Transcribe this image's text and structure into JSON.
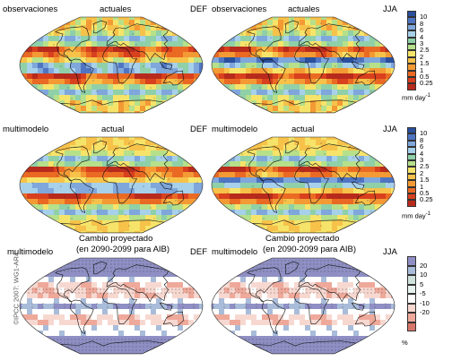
{
  "credit": "©IPCC 2007: WG1-AR4",
  "rows": [
    {
      "left_title": "observaciones",
      "mid_title": "actuales",
      "left_season": "DEF",
      "right_title": "observaciones",
      "right_mid_title": "actuales",
      "right_season": "JJA"
    },
    {
      "left_title": "multimodelo",
      "mid_title": "actual",
      "left_season": "DEF",
      "right_title": "multimodelo",
      "right_mid_title": "actual",
      "right_season": "JJA"
    },
    {
      "left_title": "multimodelo",
      "mid_title": "Cambio proyectado",
      "mid_title2": "(en 2090-2099 para AIB)",
      "left_season": "DEF",
      "right_title": "multimodelo",
      "right_mid_title": "Cambio proyectado",
      "right_mid_title2": "(en 2090-2099 para AIB)",
      "right_season": "JJA"
    }
  ],
  "legend_precip": {
    "ticks": [
      "10",
      "8",
      "6",
      "4",
      "3",
      "2.5",
      "2",
      "1.5",
      "1",
      "0.5",
      "0.25"
    ],
    "unit": "mm day",
    "unit_sup": "-1",
    "colors": [
      "#2a4f9c",
      "#4f75c2",
      "#7fa7dc",
      "#a7d0ea",
      "#8fd0a8",
      "#b6e08a",
      "#f6e46a",
      "#f7c24a",
      "#f39a35",
      "#ea6a24",
      "#d9401e",
      "#b82a1c"
    ]
  },
  "legend_change": {
    "ticks": [
      "20",
      "10",
      "5",
      "-5",
      "-10",
      "-20"
    ],
    "unit": "%",
    "colors": [
      "#8f8fc5",
      "#a9bcd9",
      "#cfe2dc",
      "#e8f2ef",
      "#ffffff",
      "#f7d8d0",
      "#eea99a",
      "#d6756a"
    ]
  }
}
